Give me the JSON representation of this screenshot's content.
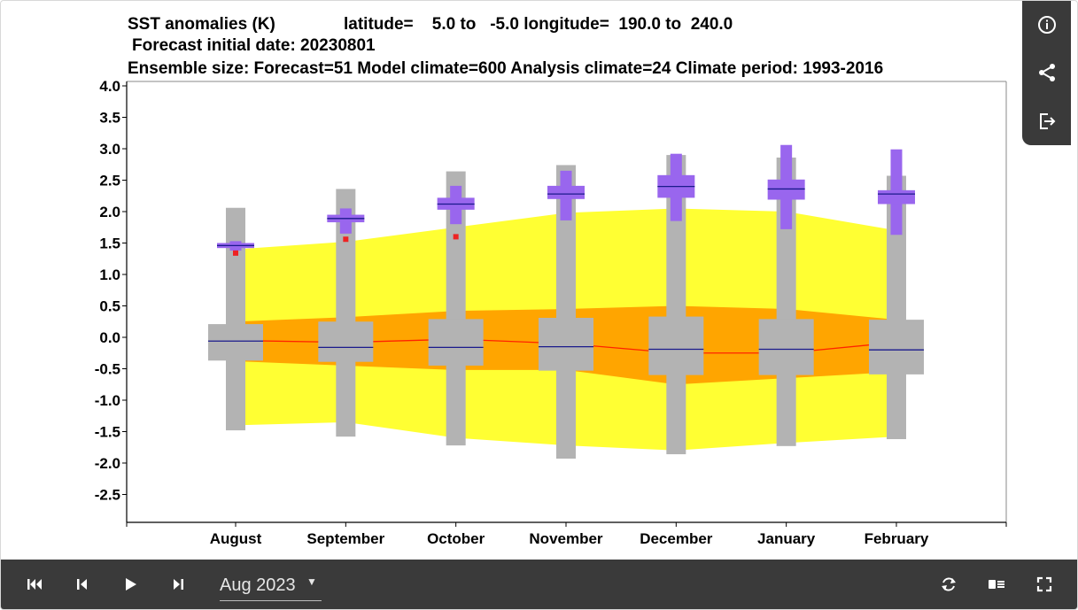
{
  "title": {
    "line1a": "SST anomalies (K)",
    "line1b": "latitude=    5.0 to   -5.0 longitude=  190.0 to  240.0",
    "line2": "Forecast initial date: 20230801",
    "line3": "Ensemble size: Forecast=51 Model climate=600 Analysis climate=24   Climate period: 1993-2016"
  },
  "chart_data": {
    "type": "box",
    "categories": [
      "August",
      "September",
      "October",
      "November",
      "December",
      "January",
      "February"
    ],
    "yticks": [
      "4.0",
      "3.5",
      "3.0",
      "2.5",
      "2.0",
      "1.5",
      "1.0",
      "0.5",
      "0.0",
      "-0.5",
      "-1.0",
      "-1.5",
      "-2.0",
      "-2.5"
    ],
    "ylim": [
      -2.9,
      4.05
    ],
    "colors": {
      "outer_band": "#ffff33",
      "inner_band": "#ffa500",
      "climate_box": "#b3b3b3",
      "forecast_box": "#9966ee",
      "median_line": "#1a1a8c",
      "climate_median_line": "#ff2200",
      "analysis_marker": "#ee2222"
    },
    "climate_band_outer": {
      "upper": [
        1.4,
        1.52,
        1.75,
        1.98,
        2.05,
        2.0,
        1.7
      ],
      "lower": [
        -1.4,
        -1.35,
        -1.6,
        -1.72,
        -1.8,
        -1.68,
        -1.58
      ]
    },
    "climate_band_inner": {
      "upper": [
        0.25,
        0.32,
        0.42,
        0.45,
        0.5,
        0.45,
        0.28
      ],
      "lower": [
        -0.38,
        -0.45,
        -0.52,
        -0.52,
        -0.75,
        -0.65,
        -0.55
      ]
    },
    "climate_median": [
      -0.05,
      -0.08,
      -0.03,
      -0.1,
      -0.25,
      -0.25,
      -0.08
    ],
    "model_climate": [
      {
        "min": -1.48,
        "q1": -0.37,
        "median": -0.06,
        "q3": 0.21,
        "max": 2.06
      },
      {
        "min": -1.58,
        "q1": -0.39,
        "median": -0.16,
        "q3": 0.25,
        "max": 2.36
      },
      {
        "min": -1.72,
        "q1": -0.45,
        "median": -0.16,
        "q3": 0.29,
        "max": 2.64
      },
      {
        "min": -1.93,
        "q1": -0.53,
        "median": -0.15,
        "q3": 0.31,
        "max": 2.74
      },
      {
        "min": -1.86,
        "q1": -0.6,
        "median": -0.19,
        "q3": 0.33,
        "max": 2.9
      },
      {
        "min": -1.73,
        "q1": -0.6,
        "median": -0.19,
        "q3": 0.29,
        "max": 2.86
      },
      {
        "min": -1.62,
        "q1": -0.59,
        "median": -0.2,
        "q3": 0.28,
        "max": 2.57
      }
    ],
    "forecast": [
      {
        "min": 1.38,
        "q1": 1.42,
        "median": 1.46,
        "q3": 1.5,
        "max": 1.53
      },
      {
        "min": 1.65,
        "q1": 1.83,
        "median": 1.89,
        "q3": 1.95,
        "max": 2.05
      },
      {
        "min": 1.8,
        "q1": 2.03,
        "median": 2.12,
        "q3": 2.22,
        "max": 2.41
      },
      {
        "min": 1.86,
        "q1": 2.2,
        "median": 2.28,
        "q3": 2.41,
        "max": 2.65
      },
      {
        "min": 1.85,
        "q1": 2.22,
        "median": 2.4,
        "q3": 2.58,
        "max": 2.92
      },
      {
        "min": 1.72,
        "q1": 2.19,
        "median": 2.36,
        "q3": 2.51,
        "max": 3.06
      },
      {
        "min": 1.63,
        "q1": 2.12,
        "median": 2.28,
        "q3": 2.34,
        "max": 2.99
      }
    ],
    "analysis": [
      1.34,
      1.56,
      1.6,
      null,
      null,
      null,
      null
    ]
  },
  "controls": {
    "date_label": "Aug 2023",
    "caret": "▼"
  },
  "icons": {
    "info": "info-icon",
    "share": "share-icon",
    "export": "export-icon",
    "first": "skip-first-icon",
    "prev": "step-back-icon",
    "play": "play-icon",
    "next": "step-forward-icon",
    "loop": "loop-icon",
    "legend": "legend-toggle-icon",
    "fullscreen": "fullscreen-icon"
  }
}
